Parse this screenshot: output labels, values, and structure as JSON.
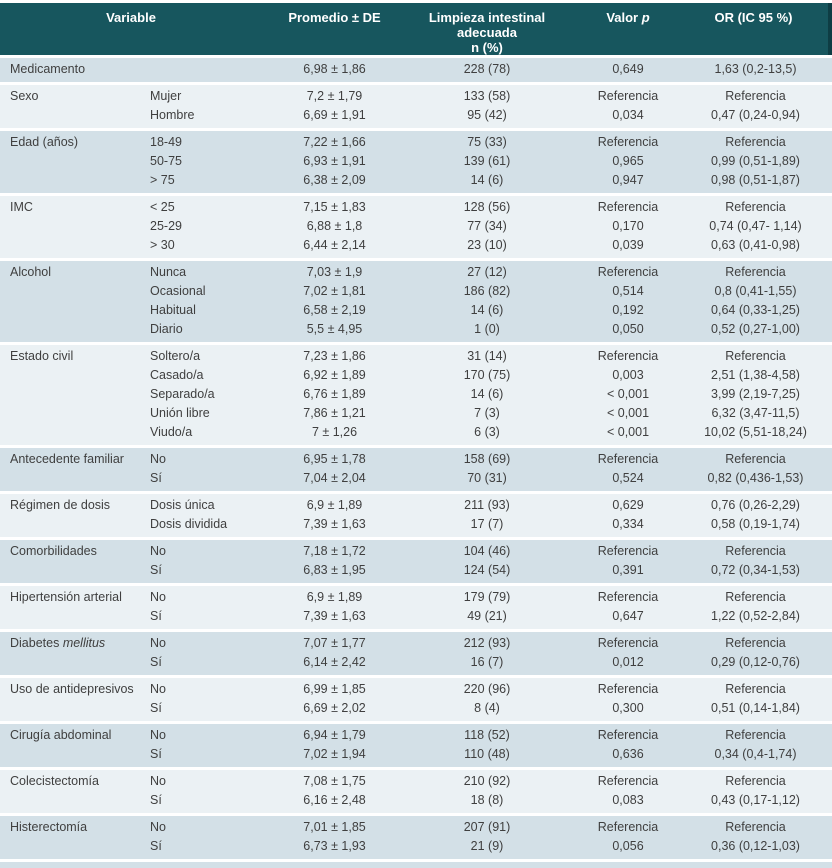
{
  "colors": {
    "header_bg": "#17565e",
    "header_edge": "#0e3d44",
    "group_row_blue": "#d3e0e7",
    "group_row_light": "#ebf1f4",
    "text": "#3f3f3f",
    "header_text": "#ffffff"
  },
  "table": {
    "header": {
      "variable": "Variable",
      "promedio": "Promedio ± DE",
      "limpieza_line1": "Limpieza intestinal adecuada",
      "limpieza_line2": "n (%)",
      "valor_p_prefix": "Valor ",
      "valor_p_italic": "p",
      "or": "OR (IC 95 %)"
    },
    "groups": [
      {
        "variable": "Medicamento",
        "rows": [
          {
            "category": "",
            "promedio": "6,98 ± 1,86",
            "n": "228 (78)",
            "p": "0,649",
            "or": "1,63 (0,2-13,5)"
          }
        ]
      },
      {
        "variable": "Sexo",
        "rows": [
          {
            "category": "Mujer",
            "promedio": "7,2 ± 1,79",
            "n": "133 (58)",
            "p": "Referencia",
            "or": "Referencia"
          },
          {
            "category": "Hombre",
            "promedio": "6,69 ± 1,91",
            "n": "95 (42)",
            "p": "0,034",
            "or": "0,47 (0,24-0,94)"
          }
        ]
      },
      {
        "variable": "Edad (años)",
        "rows": [
          {
            "category": "18-49",
            "promedio": "7,22 ± 1,66",
            "n": "75 (33)",
            "p": "Referencia",
            "or": "Referencia"
          },
          {
            "category": "50-75",
            "promedio": "6,93 ± 1,91",
            "n": "139 (61)",
            "p": "0,965",
            "or": "0,99 (0,51-1,89)"
          },
          {
            "category": "> 75",
            "promedio": "6,38 ± 2,09",
            "n": "14 (6)",
            "p": "0,947",
            "or": "0,98 (0,51-1,87)"
          }
        ]
      },
      {
        "variable": "IMC",
        "rows": [
          {
            "category": "< 25",
            "promedio": "7,15 ± 1,83",
            "n": "128 (56)",
            "p": "Referencia",
            "or": "Referencia"
          },
          {
            "category": "25-29",
            "promedio": "6,88 ± 1,8",
            "n": "77 (34)",
            "p": "0,170",
            "or": "0,74 (0,47- 1,14)"
          },
          {
            "category": "> 30",
            "promedio": "6,44 ± 2,14",
            "n": "23 (10)",
            "p": "0,039",
            "or": "0,63 (0,41-0,98)"
          }
        ]
      },
      {
        "variable": "Alcohol",
        "rows": [
          {
            "category": "Nunca",
            "promedio": "7,03 ± 1,9",
            "n": "27 (12)",
            "p": "Referencia",
            "or": "Referencia"
          },
          {
            "category": "Ocasional",
            "promedio": "7,02 ± 1,81",
            "n": "186 (82)",
            "p": "0,514",
            "or": "0,8 (0,41-1,55)"
          },
          {
            "category": "Habitual",
            "promedio": "6,58 ± 2,19",
            "n": "14 (6)",
            "p": "0,192",
            "or": "0,64 (0,33-1,25)"
          },
          {
            "category": "Diario",
            "promedio": "5,5 ± 4,95",
            "n": "1 (0)",
            "p": "0,050",
            "or": "0,52 (0,27-1,00)"
          }
        ]
      },
      {
        "variable": "Estado civil",
        "rows": [
          {
            "category": "Soltero/a",
            "promedio": "7,23 ± 1,86",
            "n": "31 (14)",
            "p": "Referencia",
            "or": "Referencia"
          },
          {
            "category": "Casado/a",
            "promedio": "6,92 ± 1,89",
            "n": "170 (75)",
            "p": "0,003",
            "or": "2,51 (1,38-4,58)"
          },
          {
            "category": "Separado/a",
            "promedio": "6,76 ± 1,89",
            "n": "14 (6)",
            "p": "< 0,001",
            "or": "3,99 (2,19-7,25)"
          },
          {
            "category": "Unión libre",
            "promedio": "7,86 ± 1,21",
            "n": "7 (3)",
            "p": "< 0,001",
            "or": "6,32 (3,47-11,5)"
          },
          {
            "category": "Viudo/a",
            "promedio": "7 ± 1,26",
            "n": "6 (3)",
            "p": "< 0,001",
            "or": "10,02 (5,51-18,24)"
          }
        ]
      },
      {
        "variable": "Antecedente familiar",
        "rows": [
          {
            "category": "No",
            "promedio": "6,95 ± 1,78",
            "n": "158 (69)",
            "p": "Referencia",
            "or": "Referencia"
          },
          {
            "category": "Sí",
            "promedio": "7,04 ± 2,04",
            "n": "70 (31)",
            "p": "0,524",
            "or": "0,82 (0,436-1,53)"
          }
        ]
      },
      {
        "variable": "Régimen de dosis",
        "rows": [
          {
            "category": "Dosis única",
            "promedio": "6,9 ± 1,89",
            "n": "211 (93)",
            "p": "0,629",
            "or": "0,76 (0,26-2,29)"
          },
          {
            "category": "Dosis dividida",
            "promedio": "7,39 ± 1,63",
            "n": "17 (7)",
            "p": "0,334",
            "or": "0,58 (0,19-1,74)"
          }
        ]
      },
      {
        "variable": "Comorbilidades",
        "rows": [
          {
            "category": "No",
            "promedio": "7,18 ± 1,72",
            "n": "104 (46)",
            "p": "Referencia",
            "or": "Referencia"
          },
          {
            "category": "Sí",
            "promedio": "6,83 ± 1,95",
            "n": "124 (54)",
            "p": "0,391",
            "or": "0,72 (0,34-1,53)"
          }
        ]
      },
      {
        "variable": "Hipertensión arterial",
        "rows": [
          {
            "category": "No",
            "promedio": "6,9 ± 1,89",
            "n": "179 (79)",
            "p": "Referencia",
            "or": "Referencia"
          },
          {
            "category": "Sí",
            "promedio": "7,39 ± 1,63",
            "n": "49 (21)",
            "p": "0,647",
            "or": "1,22 (0,52-2,84)"
          }
        ]
      },
      {
        "variable": "Diabetes ",
        "variable_italic": "mellitus",
        "rows": [
          {
            "category": "No",
            "promedio": "7,07 ± 1,77",
            "n": "212 (93)",
            "p": "Referencia",
            "or": "Referencia"
          },
          {
            "category": "Sí",
            "promedio": "6,14 ± 2,42",
            "n": "16 (7)",
            "p": "0,012",
            "or": "0,29 (0,12-0,76)"
          }
        ]
      },
      {
        "variable": "Uso de antidepresivos",
        "rows": [
          {
            "category": "No",
            "promedio": "6,99 ± 1,85",
            "n": "220 (96)",
            "p": "Referencia",
            "or": "Referencia"
          },
          {
            "category": "Sí",
            "promedio": "6,69 ± 2,02",
            "n": "8 (4)",
            "p": "0,300",
            "or": "0,51 (0,14-1,84)"
          }
        ]
      },
      {
        "variable": "Cirugía abdominal",
        "rows": [
          {
            "category": "No",
            "promedio": "6,94 ± 1,79",
            "n": "118 (52)",
            "p": "Referencia",
            "or": "Referencia"
          },
          {
            "category": "Sí",
            "promedio": "7,02 ± 1,94",
            "n": "110 (48)",
            "p": "0,636",
            "or": "0,34 (0,4-1,74)"
          }
        ]
      },
      {
        "variable": "Colecistectomía",
        "rows": [
          {
            "category": "No",
            "promedio": "7,08 ± 1,75",
            "n": "210 (92)",
            "p": "Referencia",
            "or": "Referencia"
          },
          {
            "category": "Sí",
            "promedio": "6,16 ± 2,48",
            "n": "18 (8)",
            "p": "0,083",
            "or": "0,43 (0,17-1,12)"
          }
        ]
      },
      {
        "variable": "Histerectomía",
        "rows": [
          {
            "category": "No",
            "promedio": "7,01 ± 1,85",
            "n": "207 (91)",
            "p": "Referencia",
            "or": "Referencia"
          },
          {
            "category": "Sí",
            "promedio": "6,73 ± 1,93",
            "n": "21 (9)",
            "p": "0,056",
            "or": "0,36 (0,12-1,03)"
          }
        ]
      }
    ]
  }
}
